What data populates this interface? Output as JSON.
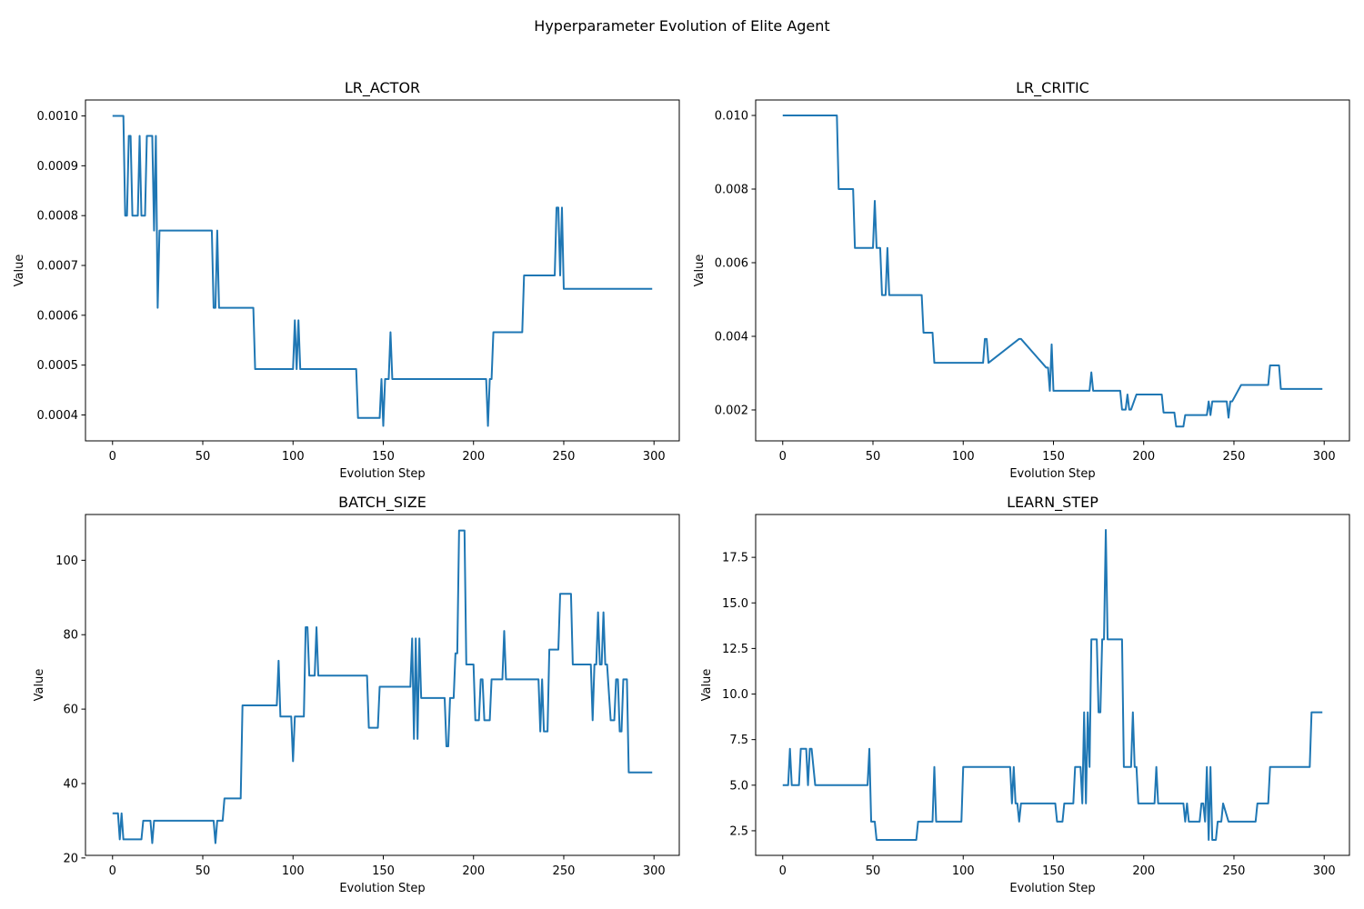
{
  "figure": {
    "suptitle": "Hyperparameter Evolution of Elite Agent",
    "line_color": "#1f77b4"
  },
  "chart_data": [
    {
      "type": "line",
      "title": "LR_ACTOR",
      "xlabel": "Evolution Step",
      "ylabel": "Value",
      "xlim": [
        -15,
        314
      ],
      "ylim": [
        0.000348,
        0.001032
      ],
      "xticks": [
        0,
        50,
        100,
        150,
        200,
        250,
        300
      ],
      "yticks": [
        0.0004,
        0.0005,
        0.0006,
        0.0007,
        0.0008,
        0.0009,
        0.001
      ],
      "ytick_labels": [
        "0.0004",
        "0.0005",
        "0.0006",
        "0.0007",
        "0.0008",
        "0.0009",
        "0.0010"
      ],
      "x": [
        0,
        6,
        7,
        8,
        9,
        10,
        11,
        14,
        15,
        16,
        18,
        19,
        22,
        23,
        24,
        25,
        26,
        55,
        56,
        57,
        58,
        59,
        78,
        79,
        100,
        101,
        102,
        103,
        104,
        135,
        136,
        148,
        149,
        150,
        151,
        152,
        153,
        154,
        155,
        156,
        207,
        208,
        209,
        210,
        211,
        227,
        228,
        245,
        246,
        247,
        248,
        249,
        250,
        299
      ],
      "y": [
        0.001,
        0.001,
        0.0008,
        0.0008,
        0.00096,
        0.00096,
        0.0008,
        0.0008,
        0.00096,
        0.0008,
        0.0008,
        0.00096,
        0.00096,
        0.00077,
        0.00096,
        0.000615,
        0.00077,
        0.00077,
        0.000615,
        0.000615,
        0.00077,
        0.000615,
        0.000615,
        0.000492,
        0.000492,
        0.00059,
        0.000492,
        0.00059,
        0.000492,
        0.000492,
        0.000394,
        0.000394,
        0.000472,
        0.000378,
        0.000472,
        0.000472,
        0.000472,
        0.000566,
        0.000472,
        0.000472,
        0.000472,
        0.000378,
        0.000472,
        0.000472,
        0.000566,
        0.000566,
        0.00068,
        0.00068,
        0.000816,
        0.000816,
        0.00068,
        0.000816,
        0.000653,
        0.000653
      ]
    },
    {
      "type": "line",
      "title": "LR_CRITIC",
      "xlabel": "Evolution Step",
      "ylabel": "Value",
      "xlim": [
        -15,
        314
      ],
      "ylim": [
        0.00116,
        0.01042
      ],
      "xticks": [
        0,
        50,
        100,
        150,
        200,
        250,
        300
      ],
      "yticks": [
        0.002,
        0.004,
        0.006,
        0.008,
        0.01
      ],
      "ytick_labels": [
        "0.002",
        "0.004",
        "0.006",
        "0.008",
        "0.010"
      ],
      "x": [
        0,
        30,
        31,
        39,
        40,
        50,
        51,
        52,
        54,
        55,
        57,
        58,
        59,
        77,
        78,
        83,
        84,
        111,
        112,
        113,
        114,
        131,
        132,
        146,
        147,
        148,
        149,
        150,
        170,
        171,
        172,
        187,
        188,
        190,
        191,
        192,
        193,
        196,
        197,
        210,
        211,
        217,
        218,
        222,
        223,
        235,
        236,
        237,
        238,
        246,
        247,
        248,
        249,
        254,
        255,
        269,
        270,
        275,
        276,
        299
      ],
      "y": [
        0.01,
        0.01,
        0.008,
        0.008,
        0.0064,
        0.0064,
        0.00768,
        0.0064,
        0.0064,
        0.00512,
        0.00512,
        0.0064,
        0.00512,
        0.00512,
        0.0041,
        0.0041,
        0.00328,
        0.00328,
        0.00393,
        0.00393,
        0.00328,
        0.00393,
        0.00393,
        0.00315,
        0.00315,
        0.00252,
        0.00378,
        0.00252,
        0.00252,
        0.00302,
        0.00252,
        0.00252,
        0.00201,
        0.00201,
        0.00242,
        0.00201,
        0.00201,
        0.00242,
        0.00242,
        0.00242,
        0.00193,
        0.00193,
        0.00155,
        0.00155,
        0.00186,
        0.00186,
        0.00223,
        0.00186,
        0.00223,
        0.00223,
        0.00179,
        0.00223,
        0.00223,
        0.00268,
        0.00268,
        0.00268,
        0.00321,
        0.00321,
        0.00257,
        0.00257
      ]
    },
    {
      "type": "line",
      "title": "BATCH_SIZE",
      "xlabel": "Evolution Step",
      "ylabel": "Value",
      "xlim": [
        -15,
        314
      ],
      "ylim": [
        20.7,
        112.3
      ],
      "xticks": [
        0,
        50,
        100,
        150,
        200,
        250,
        300
      ],
      "yticks": [
        20,
        40,
        60,
        80,
        100
      ],
      "ytick_labels": [
        "20",
        "40",
        "60",
        "80",
        "100"
      ],
      "x": [
        0,
        3,
        4,
        5,
        6,
        7,
        16,
        17,
        21,
        22,
        23,
        24,
        25,
        56,
        57,
        58,
        59,
        61,
        62,
        71,
        72,
        91,
        92,
        93,
        99,
        100,
        101,
        106,
        107,
        108,
        109,
        110,
        112,
        113,
        114,
        141,
        142,
        147,
        148,
        165,
        166,
        167,
        168,
        169,
        170,
        171,
        172,
        184,
        185,
        186,
        187,
        189,
        190,
        191,
        192,
        195,
        196,
        200,
        201,
        203,
        204,
        205,
        206,
        209,
        210,
        216,
        217,
        218,
        219,
        236,
        237,
        238,
        239,
        241,
        242,
        246,
        247,
        248,
        249,
        254,
        255,
        265,
        266,
        267,
        268,
        269,
        270,
        271,
        272,
        273,
        274,
        276,
        277,
        278,
        279,
        280,
        281,
        282,
        283,
        284,
        285,
        286,
        287,
        299
      ],
      "y": [
        32,
        32,
        25,
        32,
        25,
        25,
        25,
        30,
        30,
        24,
        30,
        30,
        30,
        30,
        24,
        30,
        30,
        30,
        36,
        36,
        61,
        61,
        73,
        58,
        58,
        46,
        58,
        58,
        82,
        82,
        69,
        69,
        69,
        82,
        69,
        69,
        55,
        55,
        66,
        66,
        79,
        52,
        79,
        52,
        79,
        63,
        63,
        63,
        50,
        50,
        63,
        63,
        75,
        75,
        108,
        108,
        72,
        72,
        57,
        57,
        68,
        68,
        57,
        57,
        68,
        68,
        81,
        68,
        68,
        68,
        54,
        68,
        54,
        54,
        76,
        76,
        76,
        91,
        91,
        91,
        72,
        72,
        57,
        72,
        72,
        86,
        72,
        72,
        86,
        72,
        72,
        57,
        57,
        57,
        68,
        68,
        54,
        54,
        68,
        68,
        68,
        43,
        43,
        43
      ]
    },
    {
      "type": "line",
      "title": "LEARN_STEP",
      "xlabel": "Evolution Step",
      "ylabel": "Value",
      "xlim": [
        -15,
        314
      ],
      "ylim": [
        1.15,
        19.85
      ],
      "xticks": [
        0,
        50,
        100,
        150,
        200,
        250,
        300
      ],
      "yticks": [
        2.5,
        5.0,
        7.5,
        10.0,
        12.5,
        15.0,
        17.5
      ],
      "ytick_labels": [
        "2.5",
        "5.0",
        "7.5",
        "10.0",
        "12.5",
        "15.0",
        "17.5"
      ],
      "x": [
        0,
        3,
        4,
        5,
        9,
        10,
        13,
        14,
        15,
        16,
        18,
        19,
        47,
        48,
        49,
        51,
        52,
        74,
        75,
        83,
        84,
        85,
        99,
        100,
        126,
        127,
        128,
        129,
        130,
        131,
        132,
        151,
        152,
        155,
        156,
        161,
        162,
        165,
        166,
        167,
        168,
        169,
        170,
        171,
        172,
        174,
        175,
        176,
        177,
        178,
        179,
        180,
        188,
        189,
        193,
        194,
        195,
        196,
        197,
        206,
        207,
        208,
        222,
        223,
        224,
        225,
        231,
        232,
        233,
        234,
        235,
        236,
        237,
        238,
        239,
        240,
        241,
        243,
        244,
        247,
        248,
        249,
        250,
        262,
        263,
        269,
        270,
        292,
        293,
        299
      ],
      "y": [
        5,
        5,
        7,
        5,
        5,
        7,
        7,
        5,
        7,
        7,
        5,
        5,
        5,
        7,
        3,
        3,
        2,
        2,
        3,
        3,
        6,
        3,
        3,
        6,
        6,
        4,
        6,
        4,
        4,
        3,
        4,
        4,
        3,
        3,
        4,
        4,
        6,
        6,
        4,
        9,
        4,
        9,
        6,
        13,
        13,
        13,
        9,
        9,
        13,
        13,
        19,
        13,
        13,
        6,
        6,
        9,
        6,
        6,
        4,
        4,
        6,
        4,
        4,
        3,
        4,
        3,
        3,
        4,
        4,
        3,
        6,
        2,
        6,
        2,
        2,
        2,
        3,
        3,
        4,
        3,
        3,
        3,
        3,
        3,
        4,
        4,
        6,
        6,
        9,
        9
      ]
    }
  ]
}
